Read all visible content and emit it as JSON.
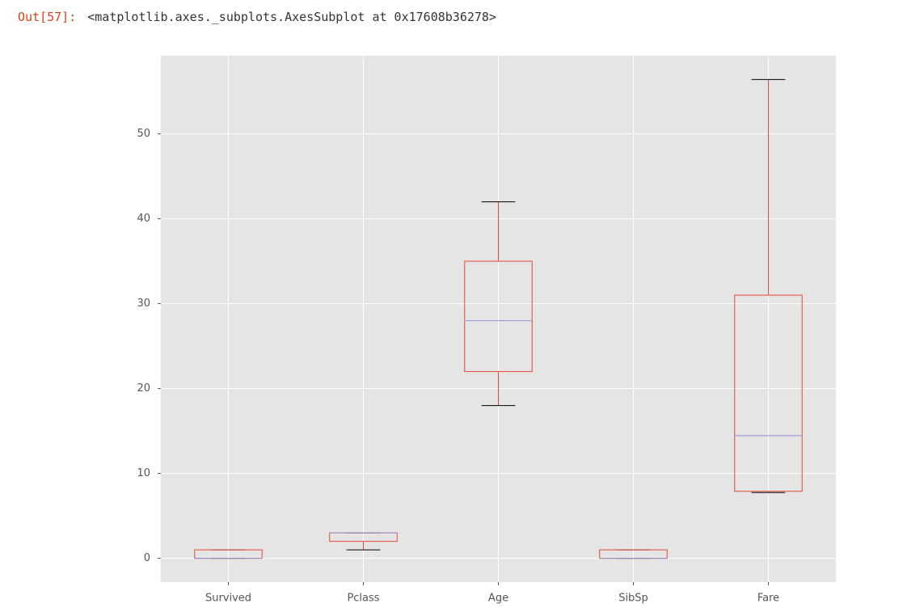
{
  "output_prompt": "Out[57]:",
  "output_text": "<matplotlib.axes._subplots.AxesSubplot at 0x17608b36278>",
  "chart_data": {
    "type": "box",
    "categories": [
      "Survived",
      "Pclass",
      "Age",
      "SibSp",
      "Fare"
    ],
    "boxes": [
      {
        "min": 0,
        "q1": 0,
        "median": 0,
        "q3": 1,
        "max": 1
      },
      {
        "min": 1,
        "q1": 2,
        "median": 3,
        "q3": 3,
        "max": 3
      },
      {
        "min": 18,
        "q1": 22,
        "median": 28,
        "q3": 35,
        "max": 42
      },
      {
        "min": 0,
        "q1": 0,
        "median": 0,
        "q3": 1,
        "max": 1
      },
      {
        "min": 7.75,
        "q1": 7.9,
        "median": 14.45,
        "q3": 31,
        "max": 56.4
      }
    ],
    "ylim": [
      -2.8,
      59.2
    ],
    "yticks": [
      0,
      10,
      20,
      30,
      40,
      50
    ],
    "grid": true,
    "box_color": "#E24A33",
    "median_color": "#988ED5",
    "cap_color": "#000000",
    "background": "#E5E5E5"
  }
}
